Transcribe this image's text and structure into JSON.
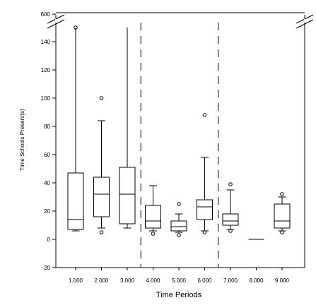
{
  "chart_data": {
    "type": "box",
    "xlabel": "Time Periods",
    "ylabel": "Time Schools Present(s)",
    "categories": [
      "1.000",
      "2.000",
      "3.000",
      "4.000",
      "5.000",
      "6.000",
      "7.000",
      "8.000",
      "9.000"
    ],
    "ylim": [
      -20,
      600
    ],
    "axis_break": {
      "from": 150,
      "to": 590
    },
    "y_ticks": [
      -20,
      0,
      20,
      40,
      60,
      80,
      100,
      120,
      140,
      600
    ],
    "group_separators_after": [
      "3.000",
      "6.000"
    ],
    "series": [
      {
        "category": "1.000",
        "whisker_low": 6,
        "q1": 7,
        "median": 14,
        "q3": 47,
        "whisker_high": 590,
        "outliers": [
          590
        ]
      },
      {
        "category": "2.000",
        "whisker_low": 8,
        "q1": 16,
        "median": 32,
        "q3": 44,
        "whisker_high": 84,
        "outliers": [
          5,
          100
        ]
      },
      {
        "category": "3.000",
        "whisker_low": 8,
        "q1": 11,
        "median": 32,
        "q3": 51,
        "whisker_high": 590,
        "outliers": []
      },
      {
        "category": "4.000",
        "whisker_low": 6,
        "q1": 8,
        "median": 13,
        "q3": 24,
        "whisker_high": 38,
        "outliers": [
          4
        ]
      },
      {
        "category": "5.000",
        "whisker_low": 5,
        "q1": 6,
        "median": 9,
        "q3": 13,
        "whisker_high": 18,
        "outliers": [
          3,
          25
        ]
      },
      {
        "category": "6.000",
        "whisker_low": 6,
        "q1": 14,
        "median": 23,
        "q3": 28,
        "whisker_high": 58,
        "outliers": [
          5,
          88
        ]
      },
      {
        "category": "7.000",
        "whisker_low": 7,
        "q1": 10,
        "median": 13,
        "q3": 18,
        "whisker_high": 35,
        "outliers": [
          6,
          39
        ]
      },
      {
        "category": "8.000",
        "whisker_low": 0,
        "q1": 0,
        "median": 0,
        "q3": 0,
        "whisker_high": 0,
        "outliers": []
      },
      {
        "category": "9.000",
        "whisker_low": 6,
        "q1": 8,
        "median": 13,
        "q3": 25,
        "whisker_high": 30,
        "outliers": [
          5,
          32
        ]
      }
    ]
  }
}
